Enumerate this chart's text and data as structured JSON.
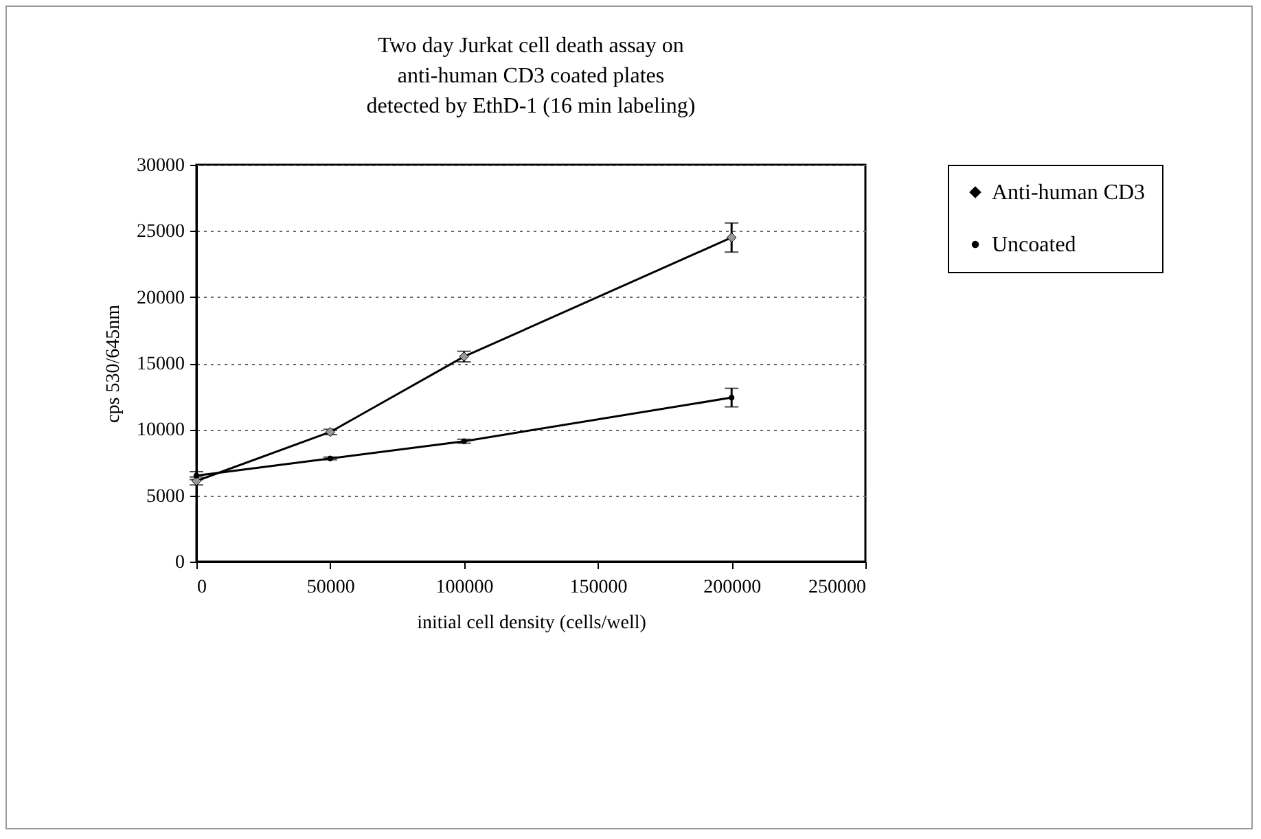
{
  "chart_data": {
    "type": "line",
    "title": [
      "Two day Jurkat cell death assay on",
      "anti-human CD3 coated plates",
      "detected by EthD-1 (16 min labeling)"
    ],
    "xlabel": "initial cell density (cells/well)",
    "ylabel": "cps 530/645nm",
    "x": [
      0,
      50000,
      100000,
      200000
    ],
    "series": [
      {
        "name": "Anti-human CD3",
        "color": "#000000",
        "marker": "diamond",
        "values": [
          6100,
          9800,
          15500,
          24500
        ],
        "errors": [
          300,
          200,
          400,
          1100
        ]
      },
      {
        "name": "Uncoated",
        "color": "#000000",
        "marker": "circle",
        "values": [
          6500,
          7800,
          9100,
          12400
        ],
        "errors": [
          300,
          100,
          150,
          700
        ]
      }
    ],
    "xlim": [
      0,
      250000
    ],
    "xticks": [
      0,
      50000,
      100000,
      150000,
      200000,
      250000
    ],
    "ylim": [
      0,
      30000
    ],
    "yticks": [
      0,
      5000,
      10000,
      15000,
      20000,
      25000,
      30000
    ],
    "grid": "y",
    "legend": "right"
  }
}
